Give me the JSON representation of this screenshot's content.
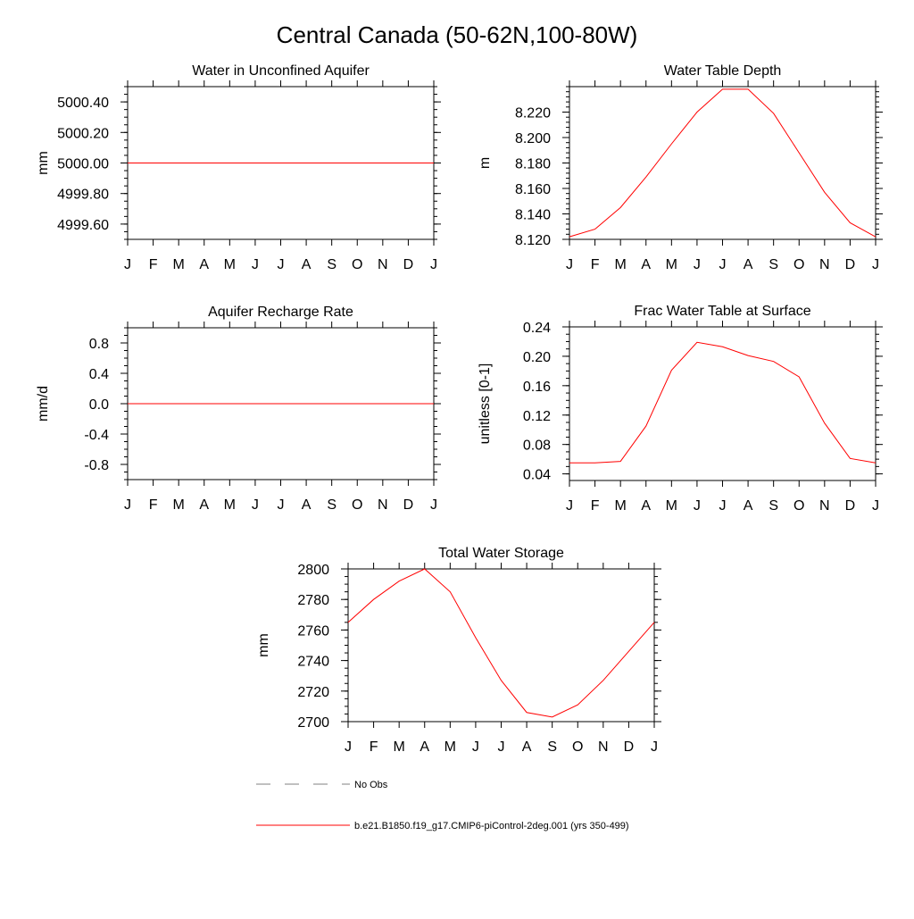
{
  "title": "Central Canada (50-62N,100-80W)",
  "chart_data": [
    {
      "type": "line",
      "title": "Water in Unconfined Aquifer",
      "ylabel": "mm",
      "categories": [
        "J",
        "F",
        "M",
        "A",
        "M",
        "J",
        "J",
        "A",
        "S",
        "O",
        "N",
        "D",
        "J"
      ],
      "ylim": [
        4999.5,
        5000.5
      ],
      "yticks": [
        4999.6,
        4999.8,
        5000.0,
        5000.2,
        5000.4
      ],
      "ytick_labels": [
        "4999.60",
        "4999.80",
        "5000.00",
        "5000.20",
        "5000.40"
      ],
      "yminor": 0.05,
      "values": [
        5000,
        5000,
        5000,
        5000,
        5000,
        5000,
        5000,
        5000,
        5000,
        5000,
        5000,
        5000,
        5000
      ]
    },
    {
      "type": "line",
      "title": "Water Table Depth",
      "ylabel": "m",
      "categories": [
        "J",
        "F",
        "M",
        "A",
        "M",
        "J",
        "J",
        "A",
        "S",
        "O",
        "N",
        "D",
        "J"
      ],
      "ylim": [
        8.12,
        8.24
      ],
      "yticks": [
        8.12,
        8.14,
        8.16,
        8.18,
        8.2,
        8.22
      ],
      "ytick_labels": [
        "8.120",
        "8.140",
        "8.160",
        "8.180",
        "8.200",
        "8.220"
      ],
      "yminor": 0.004,
      "values": [
        8.122,
        8.128,
        8.145,
        8.169,
        8.195,
        8.22,
        8.238,
        8.238,
        8.219,
        8.188,
        8.157,
        8.133,
        8.122
      ]
    },
    {
      "type": "line",
      "title": "Aquifer Recharge Rate",
      "ylabel": "mm/d",
      "categories": [
        "J",
        "F",
        "M",
        "A",
        "M",
        "J",
        "J",
        "A",
        "S",
        "O",
        "N",
        "D",
        "J"
      ],
      "ylim": [
        -1.0,
        1.0
      ],
      "yticks": [
        -0.8,
        -0.4,
        0.0,
        0.4,
        0.8
      ],
      "ytick_labels": [
        "-0.8",
        "-0.4",
        "0.0",
        "0.4",
        "0.8"
      ],
      "yminor": 0.1,
      "values": [
        0,
        0,
        0,
        0,
        0,
        0,
        0,
        0,
        0,
        0,
        0,
        0,
        0
      ]
    },
    {
      "type": "line",
      "title": "Frac Water Table at Surface",
      "ylabel": "unitless [0-1]",
      "categories": [
        "J",
        "F",
        "M",
        "A",
        "M",
        "J",
        "J",
        "A",
        "S",
        "O",
        "N",
        "D",
        "J"
      ],
      "ylim": [
        0.031,
        0.24
      ],
      "yticks": [
        0.04,
        0.08,
        0.12,
        0.16,
        0.2,
        0.24
      ],
      "ytick_labels": [
        "0.04",
        "0.08",
        "0.12",
        "0.16",
        "0.20",
        "0.24"
      ],
      "yminor": 0.01,
      "values": [
        0.055,
        0.055,
        0.057,
        0.105,
        0.181,
        0.219,
        0.213,
        0.201,
        0.193,
        0.172,
        0.109,
        0.061,
        0.055
      ]
    },
    {
      "type": "line",
      "title": "Total Water Storage",
      "ylabel": "mm",
      "categories": [
        "J",
        "F",
        "M",
        "A",
        "M",
        "J",
        "J",
        "A",
        "S",
        "O",
        "N",
        "D",
        "J"
      ],
      "ylim": [
        2700,
        2800
      ],
      "yticks": [
        2700,
        2720,
        2740,
        2760,
        2780,
        2800
      ],
      "ytick_labels": [
        "2700",
        "2720",
        "2740",
        "2760",
        "2780",
        "2800"
      ],
      "yminor": 5,
      "values": [
        2765,
        2780,
        2792,
        2800,
        2785,
        2755,
        2727,
        2706,
        2703,
        2711,
        2727,
        2746,
        2765
      ]
    }
  ],
  "colors": {
    "series": "#ff0000",
    "obs": "#808080",
    "axis": "#000000"
  },
  "legend": [
    {
      "label": "No Obs",
      "style": "dashed",
      "color": "#808080"
    },
    {
      "label": "b.e21.B1850.f19_g17.CMIP6-piControl-2deg.001 (yrs 350-499)",
      "style": "solid",
      "color": "#ff0000"
    }
  ]
}
